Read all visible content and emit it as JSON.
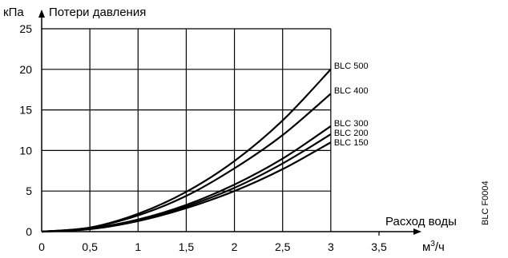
{
  "chart_data": {
    "type": "line",
    "ylabel_unit": "кПа",
    "ylabel": "Потери давления",
    "xlabel": "Расход воды",
    "xlabel_unit_base": "м",
    "xlabel_unit_sup": "3",
    "xlabel_unit_rest": "/ч",
    "x_ticks": [
      "0",
      "0,5",
      "1",
      "1,5",
      "2",
      "2,5",
      "3",
      "3,5"
    ],
    "y_ticks": [
      "0",
      "5",
      "10",
      "15",
      "20",
      "25"
    ],
    "xlim": [
      0,
      3.5
    ],
    "ylim": [
      0,
      25
    ],
    "grid": true,
    "series": [
      {
        "name": "BLC 500",
        "x": [
          0,
          0.5,
          1,
          1.5,
          2,
          2.5,
          3
        ],
        "values": [
          0,
          0.5,
          2.2,
          4.9,
          8.7,
          13.7,
          20
        ]
      },
      {
        "name": "BLC 400",
        "x": [
          0,
          0.5,
          1,
          1.5,
          2,
          2.5,
          3
        ],
        "values": [
          0,
          0.5,
          2.0,
          4.4,
          7.8,
          11.9,
          17
        ]
      },
      {
        "name": "BLC 300",
        "x": [
          0,
          0.5,
          1,
          1.5,
          2,
          2.5,
          3
        ],
        "values": [
          0,
          0.4,
          1.5,
          3.3,
          5.8,
          9.0,
          13
        ]
      },
      {
        "name": "BLC 200",
        "x": [
          0,
          0.5,
          1,
          1.5,
          2,
          2.5,
          3
        ],
        "values": [
          0,
          0.35,
          1.4,
          3.1,
          5.4,
          8.4,
          12
        ]
      },
      {
        "name": "BLC 150",
        "x": [
          0,
          0.5,
          1,
          1.5,
          2,
          2.5,
          3
        ],
        "values": [
          0,
          0.3,
          1.3,
          2.9,
          5.0,
          7.7,
          11
        ]
      }
    ]
  },
  "figure_code": "BLC F0004"
}
